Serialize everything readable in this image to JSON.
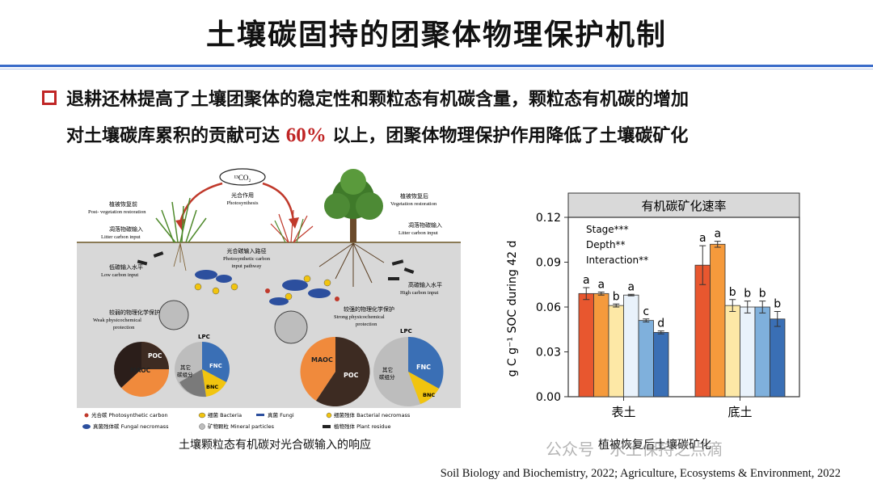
{
  "slide": {
    "title": "土壤碳固持的团聚体物理保护机制",
    "bullet_line1": "退耕还林提高了土壤团聚体的稳定性和颗粒态有机碳含量，颗粒态有机碳的增加",
    "bullet_line2_pre": "对土壤碳库累积的贡献可达",
    "bullet_highlight": "60%",
    "bullet_line2_post": " 以上，团聚体物理保护作用降低了土壤碳矿化",
    "highlight_color": "#c02525",
    "accent_color": "#3a6cc9"
  },
  "figure_left": {
    "co2_label": "¹³CO₂",
    "photosynthesis_zh": "光合作用",
    "photosynthesis_en": "Photosynthesis",
    "pre_zh": "植被恢复前",
    "pre_en": "Post- vegetation restoration",
    "post_zh": "植被恢复后",
    "post_en": "Vegetation restoration",
    "litter_left_zh": "凋落物碳输入",
    "litter_left_en": "Litter carbon input",
    "litter_right_zh": "凋落物碳输入",
    "litter_right_en": "Litter carbon input",
    "pathway_zh": "光合碳输入路径",
    "pathway_en1": "Photosynthetic carbon",
    "pathway_en2": "input pathway",
    "low_zh": "低碳输入水平",
    "low_en": "Low carbon input",
    "high_zh": "高碳输入水平",
    "high_en": "High carbon input",
    "weak_zh": "较弱的物理化学保护",
    "weak_en1": "Weak physicochemical",
    "weak_en2": "protection",
    "strong_zh": "较强的物理化学保护",
    "strong_en1": "Strong physicochemical",
    "strong_en2": "protection",
    "maoc": "MAOC",
    "poc": "POC",
    "lpc": "LPC",
    "fnc": "FNC",
    "bnc": "BNC",
    "other_zh1": "其它",
    "other_zh2": "碳组分",
    "legend": [
      "光合碳 Photosynthetic carbon",
      "细菌 Bacteria",
      "真菌 Fungi",
      "细菌残体 Bacterial necromass",
      "真菌残体碳 Fungal necromass",
      "矿物颗粒 Mineral particles",
      "植物残体 Plant residue"
    ],
    "caption": "土壤颗粒态有机碳对光合碳输入的响应"
  },
  "chart_data": {
    "type": "bar",
    "title": "有机碳矿化速率",
    "ylabel": "g C g⁻¹ SOC during 42 d",
    "ylim": [
      0,
      0.12
    ],
    "yticks": [
      "0.00",
      "0.03",
      "0.06",
      "0.09",
      "0.12"
    ],
    "categories": [
      "表土",
      "底土"
    ],
    "stats": [
      "Stage***",
      "Depth**",
      "Interaction**"
    ],
    "series_colors": [
      "#e8572f",
      "#f59a3c",
      "#fde8a6",
      "#e9f2fb",
      "#7fb0dc",
      "#3a6fb5"
    ],
    "groups": [
      {
        "category": "表土",
        "values": [
          0.069,
          0.069,
          0.061,
          0.068,
          0.051,
          0.043
        ],
        "errors": [
          0.004,
          0.001,
          0.001,
          0.0005,
          0.001,
          0.001
        ],
        "letters": [
          "a",
          "a",
          "b",
          "a",
          "c",
          "d"
        ]
      },
      {
        "category": "底土",
        "values": [
          0.088,
          0.102,
          0.061,
          0.06,
          0.06,
          0.052
        ],
        "errors": [
          0.013,
          0.002,
          0.004,
          0.004,
          0.004,
          0.005
        ],
        "letters": [
          "a",
          "a",
          "b",
          "b",
          "b",
          "b"
        ]
      }
    ],
    "caption": "植被恢复后土壤碳矿化"
  },
  "watermark": "公众号 · 水土保持之点滴",
  "references": "Soil Biology and Biochemistry, 2022; Agriculture, Ecosystems & Environment, 2022"
}
